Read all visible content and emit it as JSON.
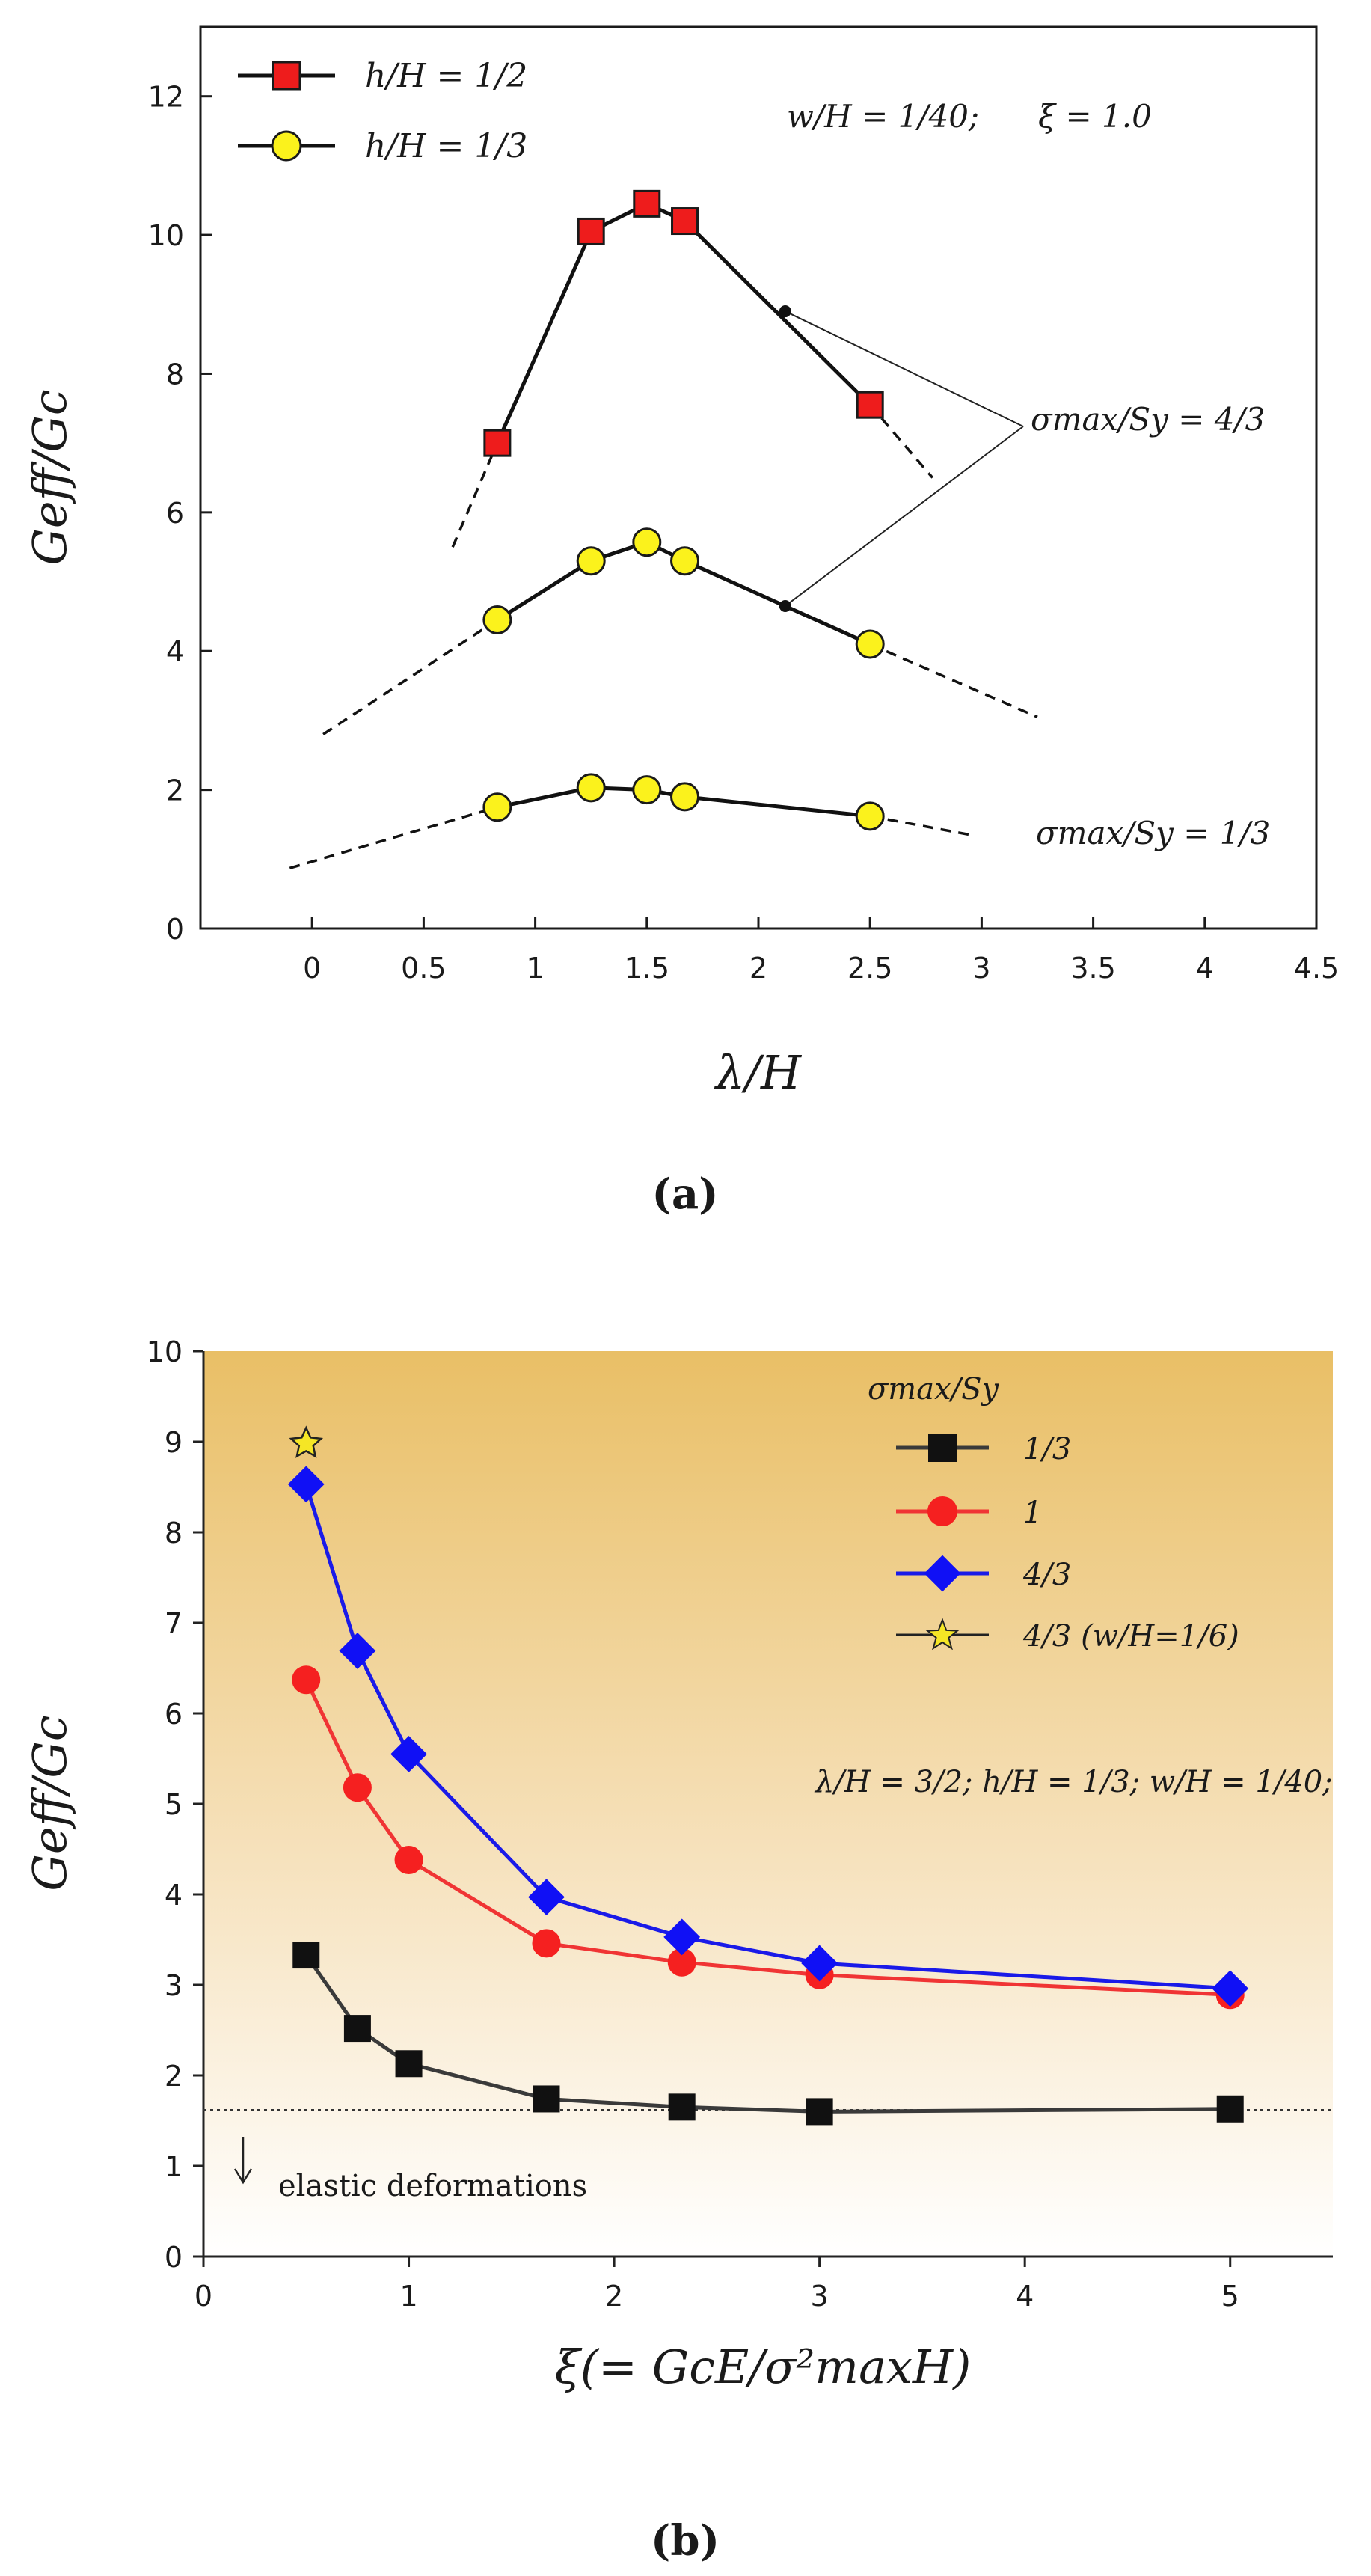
{
  "chart_data": [
    {
      "type": "line",
      "panel_label": "(a)",
      "xlabel": "λ/H",
      "ylabel": "Geff/Gc",
      "xlim": [
        -0.5,
        4.5
      ],
      "ylim": [
        0,
        13
      ],
      "xticks": [
        "0",
        "0.5",
        "1",
        "1.5",
        "2",
        "2.5",
        "3",
        "3.5",
        "4",
        "4.5"
      ],
      "yticks": [
        "0",
        "2",
        "4",
        "6",
        "8",
        "10",
        "12"
      ],
      "legend": [
        "h/H = 1/2",
        "h/H = 1/3"
      ],
      "annotation_ratio": "w/H = 1/40;",
      "annotation_xi": "ξ = 1.0",
      "label_upper": "σmax/Sy = 4/3",
      "label_lower": "σmax/Sy = 1/3",
      "series": [
        {
          "name": "h/H = 1/2, σmax/Sy = 4/3",
          "x": [
            0.83,
            1.25,
            1.5,
            1.67,
            2.5
          ],
          "y": [
            7.0,
            10.05,
            10.45,
            10.2,
            7.55
          ],
          "extrapolation": [
            [
              0.63,
              5.5
            ],
            [
              0.83,
              7.0
            ],
            [
              2.5,
              7.55
            ],
            [
              2.78,
              6.5
            ]
          ]
        },
        {
          "name": "h/H = 1/3, σmax/Sy = 4/3",
          "x": [
            0.83,
            1.25,
            1.5,
            1.67,
            2.5
          ],
          "y": [
            4.45,
            5.3,
            5.57,
            5.3,
            4.1
          ],
          "extrapolation": [
            [
              0.05,
              2.8
            ],
            [
              0.83,
              4.45
            ],
            [
              2.5,
              4.1
            ],
            [
              3.25,
              3.05
            ]
          ]
        },
        {
          "name": "h/H = 1/3, σmax/Sy = 1/3",
          "x": [
            0.83,
            1.25,
            1.5,
            1.67,
            2.5
          ],
          "y": [
            1.75,
            2.03,
            2.0,
            1.9,
            1.62
          ],
          "extrapolation": [
            [
              -0.1,
              0.87
            ],
            [
              0.83,
              1.75
            ],
            [
              2.5,
              1.62
            ],
            [
              2.95,
              1.35
            ]
          ]
        }
      ],
      "marked_points": [
        [
          2.12,
          8.9
        ],
        [
          2.12,
          4.65
        ]
      ]
    },
    {
      "type": "line",
      "panel_label": "(b)",
      "xlabel": "ξ(= GcE/σ²maxH)",
      "ylabel": "Geff/Gc",
      "xlim": [
        0,
        5.5
      ],
      "ylim": [
        0,
        10
      ],
      "xticks": [
        "0",
        "1",
        "2",
        "3",
        "4",
        "5"
      ],
      "yticks": [
        "0",
        "1",
        "2",
        "3",
        "4",
        "5",
        "6",
        "7",
        "8",
        "9",
        "10"
      ],
      "legend_title": "σmax/Sy",
      "legend": [
        "1/3",
        "1",
        "4/3",
        "4/3 (w/H=1/6)"
      ],
      "annotation": "λ/H = 3/2; h/H = 1/3; w/H = 1/40;",
      "elastic_label": "elastic deformations",
      "elastic_limit": 1.62,
      "series": [
        {
          "name": "1/3",
          "color": "#3a3a3a",
          "marker": "square",
          "x": [
            0.5,
            0.75,
            1.0,
            1.67,
            2.33,
            3.0,
            5.0
          ],
          "y": [
            3.33,
            2.52,
            2.13,
            1.74,
            1.65,
            1.6,
            1.63
          ]
        },
        {
          "name": "1",
          "color": "#f03434",
          "marker": "circle",
          "x": [
            0.5,
            0.75,
            1.0,
            1.67,
            2.33,
            3.0,
            5.0
          ],
          "y": [
            6.37,
            5.18,
            4.38,
            3.46,
            3.25,
            3.11,
            2.89
          ]
        },
        {
          "name": "4/3",
          "color": "#1a1ae8",
          "marker": "diamond",
          "x": [
            0.5,
            0.75,
            1.0,
            1.67,
            2.33,
            3.0,
            5.0
          ],
          "y": [
            8.53,
            6.69,
            5.55,
            3.97,
            3.53,
            3.24,
            2.96
          ]
        },
        {
          "name": "4/3 (w/H=1/6)",
          "color": "#f0e020",
          "marker": "star",
          "x": [
            0.5
          ],
          "y": [
            8.98
          ]
        }
      ]
    }
  ]
}
